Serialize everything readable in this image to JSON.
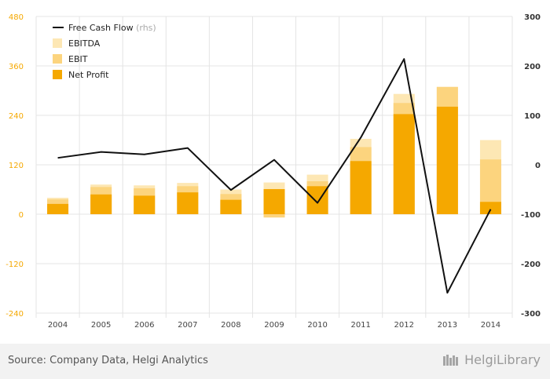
{
  "chart_data": {
    "type": "bar",
    "categories": [
      "2004",
      "2005",
      "2006",
      "2007",
      "2008",
      "2009",
      "2010",
      "2011",
      "2012",
      "2013",
      "2014"
    ],
    "series": [
      {
        "name": "EBITDA",
        "kind": "bar",
        "axis": "left",
        "color": "#fde7b4",
        "values": [
          40,
          72,
          70,
          76,
          60,
          77,
          96,
          183,
          292,
          309,
          180
        ]
      },
      {
        "name": "EBIT",
        "kind": "bar",
        "axis": "left",
        "color": "#fcd47e",
        "values": [
          36,
          66,
          63,
          68,
          49,
          -8,
          80,
          163,
          270,
          309,
          133
        ]
      },
      {
        "name": "Net Profit",
        "kind": "bar",
        "axis": "left",
        "color": "#f5a800",
        "values": [
          25,
          48,
          45,
          53,
          35,
          61,
          68,
          129,
          243,
          261,
          30
        ]
      },
      {
        "name": "Free Cash Flow",
        "legend_suffix": "(rhs)",
        "kind": "line",
        "axis": "right",
        "color": "#111111",
        "values": [
          14,
          26,
          21,
          34,
          -51,
          10,
          -77,
          55,
          214,
          -259,
          -90
        ]
      }
    ],
    "y_left": {
      "min": -240,
      "max": 480,
      "ticks": [
        -240,
        -120,
        0,
        120,
        240,
        360,
        480
      ]
    },
    "y_right": {
      "min": -300,
      "max": 300,
      "ticks": [
        -300,
        -200,
        -100,
        0,
        100,
        200,
        300
      ]
    },
    "grid": true,
    "legend_position": "top-left"
  },
  "colors": {
    "left_axis_ticks": "#f5a800",
    "right_axis_ticks": "#333333",
    "grid": "#e4e4e4",
    "rhs_suffix": "#aaaaaa"
  },
  "footer": {
    "source": "Source: Company Data, Helgi Analytics",
    "brand": "HelgiLibrary",
    "brand_icon": "bookshelf-icon"
  }
}
